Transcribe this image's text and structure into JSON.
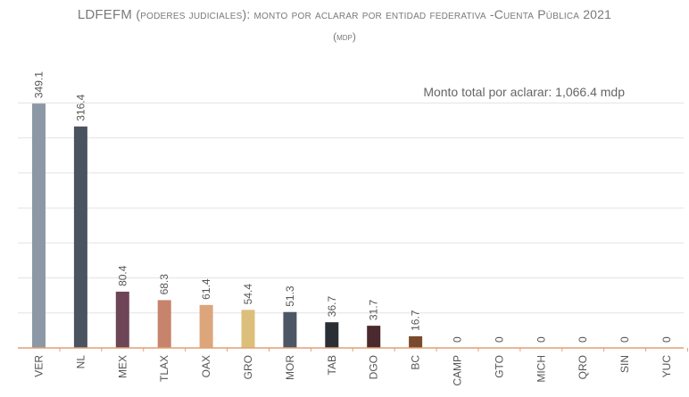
{
  "chart_data": {
    "type": "bar",
    "title_main": "LDFEFM",
    "title_rest": "(poderes judiciales): monto por aclarar por entidad federativa -Cuenta Pública 2021",
    "subtitle": "(mdp)",
    "annotation": "Monto total por aclarar: 1,066.4  mdp",
    "categories": [
      "VER",
      "NL",
      "MEX",
      "TLAX",
      "OAX",
      "GRO",
      "MOR",
      "TAB",
      "DGO",
      "BC",
      "CAMP",
      "GTO",
      "MICH",
      "QRO",
      "SIN",
      "YUC"
    ],
    "values": [
      349.1,
      316.4,
      80.4,
      68.3,
      61.4,
      54.4,
      51.3,
      36.7,
      31.7,
      16.7,
      0,
      0,
      0,
      0,
      0,
      0
    ],
    "value_labels": [
      "349.1",
      "316.4",
      "80.4",
      "68.3",
      "61.4",
      "54.4",
      "51.3",
      "36.7",
      "31.7",
      "16.7",
      "0",
      "0",
      "0",
      "0",
      "0",
      "0"
    ],
    "colors": [
      "#8d98a6",
      "#4a5360",
      "#6e4556",
      "#c8836c",
      "#dca57a",
      "#dcbf7a",
      "#4c5664",
      "#2a2f36",
      "#4a2a2e",
      "#7a4a2e",
      "#999999",
      "#999999",
      "#999999",
      "#999999",
      "#999999",
      "#999999"
    ],
    "ylim": [
      0,
      400
    ],
    "gridlines": [
      50,
      100,
      150,
      200,
      250,
      300,
      350
    ],
    "grid": true,
    "axis_color": "#e0a070",
    "grid_color": "#e3e3e3",
    "text_color": "#555555"
  }
}
